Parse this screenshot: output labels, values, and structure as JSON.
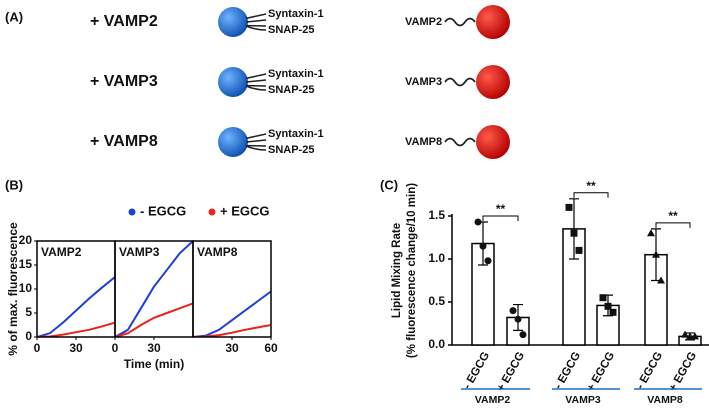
{
  "panel_a": {
    "label": "(A)",
    "rows": [
      {
        "vesicle": "+ VAMP2",
        "t_snares": [
          "Syntaxin-1",
          "SNAP-25"
        ],
        "v_snare": "VAMP2"
      },
      {
        "vesicle": "+ VAMP3",
        "t_snares": [
          "Syntaxin-1",
          "SNAP-25"
        ],
        "v_snare": "VAMP3"
      },
      {
        "vesicle": "+ VAMP8",
        "t_snares": [
          "Syntaxin-1",
          "SNAP-25"
        ],
        "v_snare": "VAMP8"
      }
    ]
  },
  "chart_data": [
    {
      "type": "line",
      "label": "(B)",
      "ylabel": "% of max. fluorescence",
      "xlabel": "Time (min)",
      "legend": [
        {
          "name": "- EGCG",
          "color": "#1f3fd6"
        },
        {
          "name": "+ EGCG",
          "color": "#e8221d"
        }
      ],
      "x": [
        0,
        10,
        20,
        30,
        40,
        50,
        60
      ],
      "xlim": [
        0,
        60
      ],
      "ylim": [
        0,
        20
      ],
      "yticks": [
        0,
        5,
        10,
        15,
        20
      ],
      "panels": [
        {
          "title": "VAMP2",
          "xticks": [
            0,
            30
          ],
          "series": [
            {
              "values": [
                0,
                0.8,
                3,
                5.5,
                8,
                10.3,
                12.5
              ]
            },
            {
              "values": [
                0,
                0.1,
                0.5,
                1,
                1.5,
                2.2,
                3
              ]
            }
          ]
        },
        {
          "title": "VAMP3",
          "xticks": [
            0,
            30
          ],
          "series": [
            {
              "values": [
                0,
                1.5,
                6,
                10.5,
                14,
                17.5,
                20
              ]
            },
            {
              "values": [
                0,
                0.8,
                2.5,
                4,
                5,
                6,
                7
              ]
            }
          ]
        },
        {
          "title": "VAMP8",
          "xticks": [
            30,
            60
          ],
          "series": [
            {
              "values": [
                0,
                0.3,
                1.5,
                3.5,
                5.5,
                7.5,
                9.5
              ]
            },
            {
              "values": [
                0,
                0.1,
                0.4,
                0.9,
                1.5,
                2,
                2.5
              ]
            }
          ]
        }
      ]
    },
    {
      "type": "bar",
      "label": "(C)",
      "ylabel": [
        "Lipid Mixing Rate",
        "(% fluorescence change/10 min)"
      ],
      "ylim": [
        0,
        1.5
      ],
      "yticks": [
        {
          "value": 0,
          "label": "0.0"
        },
        {
          "value": 0.5,
          "label": "0.5"
        },
        {
          "value": 1,
          "label": "1.0"
        },
        {
          "value": 1.5,
          "label": "1.5"
        }
      ],
      "categories": [
        "- EGCG",
        "+ EGCG",
        "- EGCG",
        "+ EGCG",
        "- EGCG",
        "+ EGCG"
      ],
      "values": [
        1.18,
        0.32,
        1.35,
        0.46,
        1.05,
        0.1
      ],
      "errors": [
        0.25,
        0.15,
        0.35,
        0.12,
        0.3,
        0.04
      ],
      "points": [
        [
          1.43,
          1.15,
          0.98
        ],
        [
          0.4,
          0.3,
          0.12
        ],
        [
          1.6,
          1.3,
          1.1
        ],
        [
          0.55,
          0.45,
          0.38
        ],
        [
          1.3,
          1.05,
          0.75
        ],
        [
          0.12,
          0.1,
          0.1
        ]
      ],
      "groups": [
        "VAMP2",
        "VAMP3",
        "VAMP8"
      ],
      "significance": [
        "**",
        "**",
        "**"
      ],
      "color": "#ffffff",
      "group_color": "#1a6fc4"
    }
  ]
}
